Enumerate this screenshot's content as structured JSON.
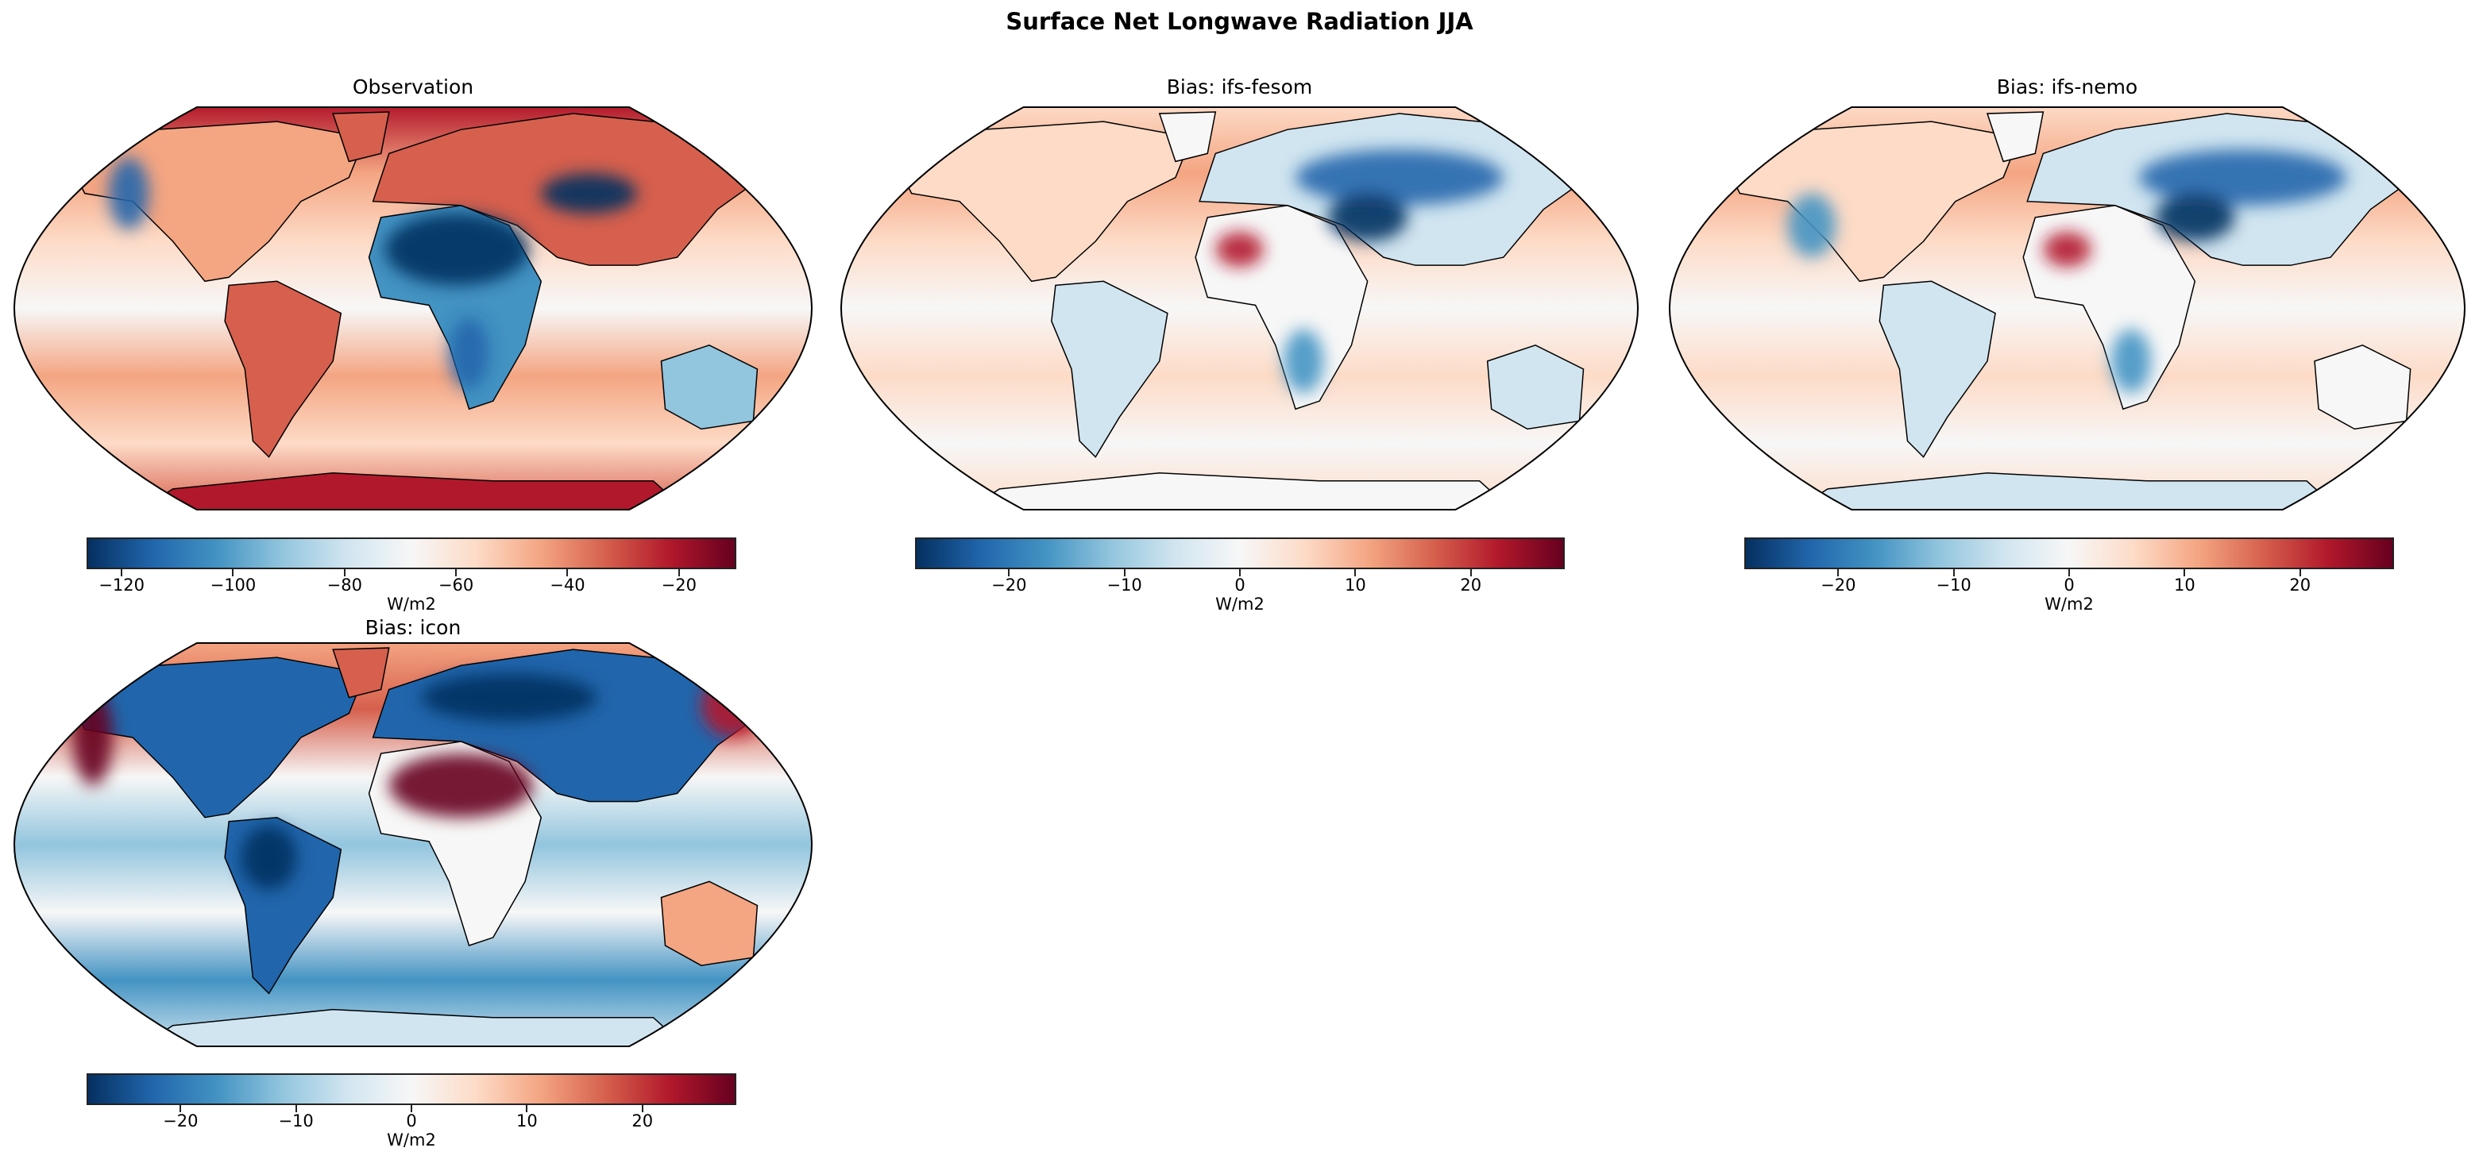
{
  "title": "Surface Net Longwave Radiation JJA",
  "colormap": [
    "#053061",
    "#2166ac",
    "#4393c3",
    "#92c5de",
    "#d1e5f0",
    "#f7f7f7",
    "#fddbc7",
    "#f4a582",
    "#d6604d",
    "#b2182b",
    "#67001f"
  ],
  "chart_data": [
    {
      "type": "heatmap",
      "projection": "Robinson",
      "title": "Observation",
      "colorbar": {
        "label": "W/m2",
        "vmin": -126,
        "vmax": -10,
        "ticks": [
          -120,
          -100,
          -80,
          -60,
          -40,
          -20
        ],
        "tick_labels": [
          "−120",
          "−100",
          "−80",
          "−60",
          "−40",
          "−20"
        ]
      }
    },
    {
      "type": "heatmap",
      "projection": "Robinson",
      "title": "Bias: ifs-fesom",
      "colorbar": {
        "label": "W/m2",
        "vmin": -28,
        "vmax": 28,
        "ticks": [
          -20,
          -10,
          0,
          10,
          20
        ],
        "tick_labels": [
          "−20",
          "−10",
          "0",
          "10",
          "20"
        ]
      }
    },
    {
      "type": "heatmap",
      "projection": "Robinson",
      "title": "Bias: ifs-nemo",
      "colorbar": {
        "label": "W/m2",
        "vmin": -28,
        "vmax": 28,
        "ticks": [
          -20,
          -10,
          0,
          10,
          20
        ],
        "tick_labels": [
          "−20",
          "−10",
          "0",
          "10",
          "20"
        ]
      }
    },
    {
      "type": "heatmap",
      "projection": "Robinson",
      "title": "Bias: icon",
      "colorbar": {
        "label": "W/m2",
        "vmin": -28,
        "vmax": 28,
        "ticks": [
          -20,
          -10,
          0,
          10,
          20
        ],
        "tick_labels": [
          "−20",
          "−10",
          "0",
          "10",
          "20"
        ]
      }
    }
  ]
}
